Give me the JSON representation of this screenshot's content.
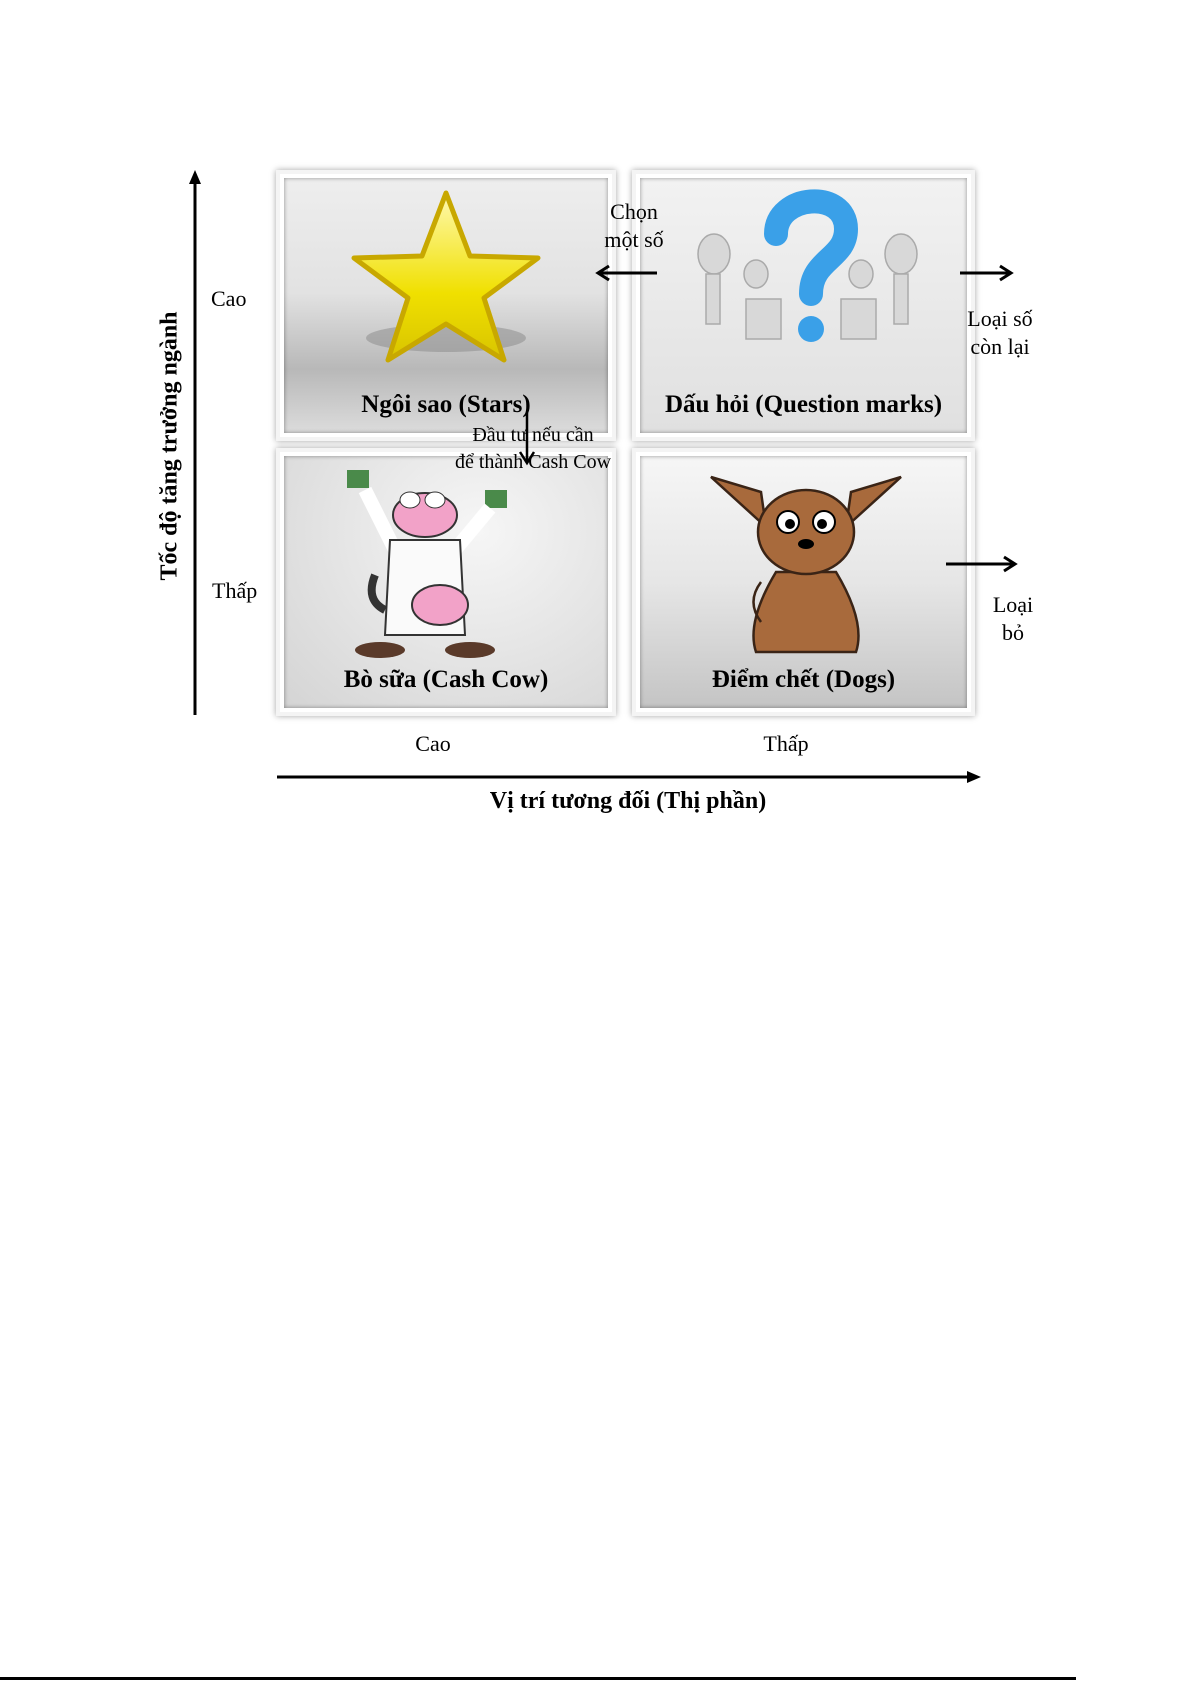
{
  "y_axis": {
    "title": "Tốc độ tăng trưởng ngành",
    "high": "Cao",
    "low": "Thấp"
  },
  "x_axis": {
    "title": "Vị trí tương đối (Thị phần)",
    "high": "Cao",
    "low": "Thấp"
  },
  "quadrants": {
    "stars": {
      "title": "Ngôi sao (Stars)",
      "icon": "star-icon"
    },
    "question_marks": {
      "title": "Dấu hỏi (Question marks)",
      "icon": "question-mark-icon"
    },
    "cash_cow": {
      "title": "Bò sữa (Cash Cow)",
      "icon": "cow-icon"
    },
    "dogs": {
      "title": "Điểm chết (Dogs)",
      "icon": "dog-icon"
    }
  },
  "annotations": {
    "choose_line1": "Chọn",
    "choose_line2": "một số",
    "drop_rest_line1": "Loại số",
    "drop_rest_line2": "còn lại",
    "invest_line1": "Đầu tư nếu cần",
    "invest_line2": "để thành Cash Cow",
    "eliminate_line1": "Loại",
    "eliminate_line2": "bỏ"
  }
}
